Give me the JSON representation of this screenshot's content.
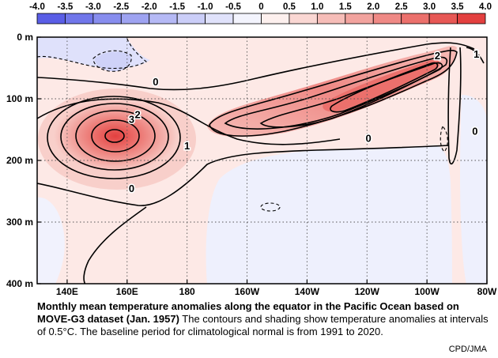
{
  "chart_data": {
    "type": "heatmap",
    "colorbar": {
      "ticks": [
        "-4.0",
        "-3.5",
        "-3.0",
        "-2.5",
        "-2.0",
        "-1.5",
        "-1.0",
        "-0.5",
        "0",
        "0.5",
        "1.0",
        "1.5",
        "2.0",
        "2.5",
        "3.0",
        "3.5",
        "4.0"
      ],
      "colors": [
        "#5a5ee6",
        "#7076ea",
        "#878dee",
        "#9ea3f1",
        "#b5b9f5",
        "#cbcef8",
        "#e0e2fb",
        "#f3f4fd",
        "#fdf0ee",
        "#fad7d3",
        "#f6bdb8",
        "#f2a39e",
        "#ef8985",
        "#eb706c",
        "#e75855",
        "#e3403f"
      ]
    },
    "x_ticks": [
      "140E",
      "160E",
      "180",
      "160W",
      "140W",
      "120W",
      "100W",
      "80W"
    ],
    "y_ticks": [
      "0 m",
      "100 m",
      "200 m",
      "300 m",
      "400 m"
    ],
    "x_range_deg_east": [
      130,
      280
    ],
    "y_range_m": [
      0,
      400
    ],
    "contour_interval": 0.5,
    "contour_labels": [
      {
        "text": "0",
        "lon": 169.5,
        "depth": 73
      },
      {
        "text": "2",
        "lon": 163.5,
        "depth": 126
      },
      {
        "text": "3",
        "lon": 161.5,
        "depth": 134
      },
      {
        "text": "1",
        "lon": 180,
        "depth": 177
      },
      {
        "text": "0",
        "lon": 161.5,
        "depth": 246
      },
      {
        "text": "0",
        "lon": 240.5,
        "depth": 165
      },
      {
        "text": "2",
        "lon": 263.5,
        "depth": 31
      },
      {
        "text": "1",
        "lon": 276.5,
        "depth": 28
      },
      {
        "text": "0",
        "lon": 276,
        "depth": 153
      }
    ],
    "features": [
      {
        "name": "west-pacific warm core",
        "lon": 156,
        "depth": 162,
        "value": 3.5
      },
      {
        "name": "east-pacific warm band",
        "lon_range": [
          190,
          270
        ],
        "depth_range": [
          30,
          160
        ],
        "value": 2.5
      },
      {
        "name": "deep cool region",
        "lon_range": [
          185,
          272
        ],
        "depth_range": [
          180,
          400
        ],
        "value": -0.3
      },
      {
        "name": "surface cool patch",
        "lon_range": [
          131,
          160
        ],
        "depth_range": [
          0,
          45
        ],
        "value": -0.5
      }
    ]
  },
  "caption": {
    "title_bold": "Monthly mean temperature anomalies along the equator in the Pacific Ocean based on MOVE-G3 dataset (Jan. 1957)",
    "text": " The contours and shading show temperature anomalies at intervals of 0.5°C.  The baseline period for climatological normal is from 1991 to 2020.",
    "credit": "CPD/JMA"
  }
}
